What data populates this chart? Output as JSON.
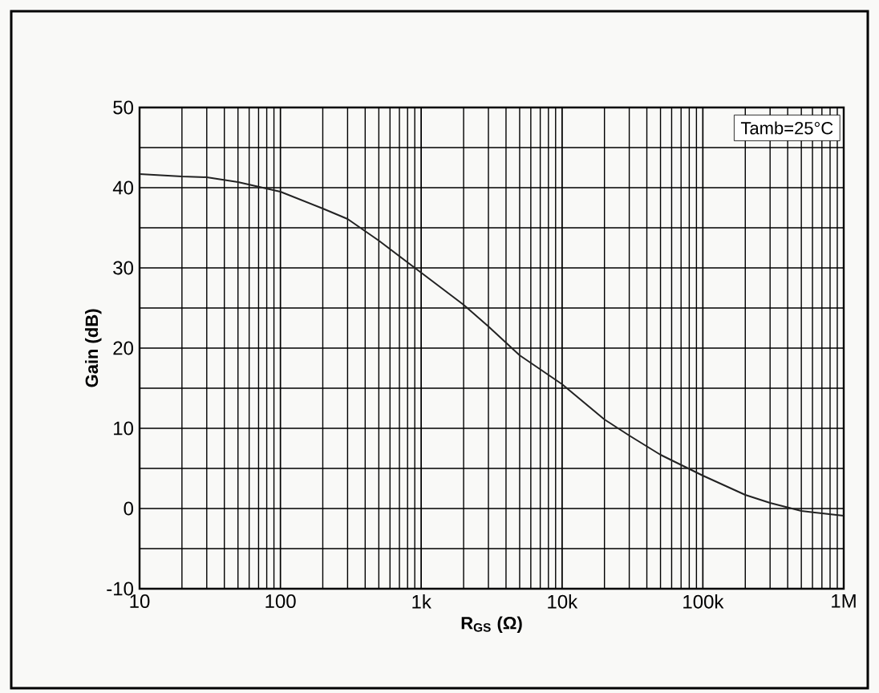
{
  "chart_data": {
    "type": "line",
    "xlabel": "R$_{GS}$ (Ω)",
    "ylabel": "Gain (dB)",
    "log": "x",
    "grid": true,
    "annotations": [
      "Tamb=25°C"
    ],
    "x": [
      10,
      20,
      30,
      50,
      100,
      200,
      300,
      500,
      1000,
      2000,
      3000,
      5000,
      10000,
      20000,
      30000,
      50000,
      100000,
      200000,
      300000,
      500000,
      1000000
    ],
    "series": [
      {
        "color": "#222222",
        "values": [
          41.7,
          41.4,
          41.3,
          40.7,
          39.5,
          37.4,
          36.1,
          33.4,
          29.4,
          25.4,
          22.7,
          19.1,
          15.5,
          11.1,
          9.1,
          6.7,
          4.1,
          1.7,
          0.7,
          -0.3,
          -0.9
        ]
      }
    ],
    "xlim": [
      10,
      1000000
    ],
    "ylim": [
      -10,
      50
    ],
    "xticks": [
      {
        "value": 10,
        "label": "10"
      },
      {
        "value": 100,
        "label": "100"
      },
      {
        "value": 1000,
        "label": "1k"
      },
      {
        "value": 10000,
        "label": "10k"
      },
      {
        "value": 100000,
        "label": "100k"
      },
      {
        "value": 1000000,
        "label": "1M"
      }
    ],
    "yticks": [
      -10,
      {
        "value": -5,
        "label": null
      },
      0,
      {
        "value": 5,
        "label": null
      },
      10,
      {
        "value": 15,
        "label": null
      },
      20,
      {
        "value": 25,
        "label": null
      },
      30,
      {
        "value": 35,
        "label": null
      },
      40,
      {
        "value": 45,
        "label": null
      },
      50
    ]
  }
}
